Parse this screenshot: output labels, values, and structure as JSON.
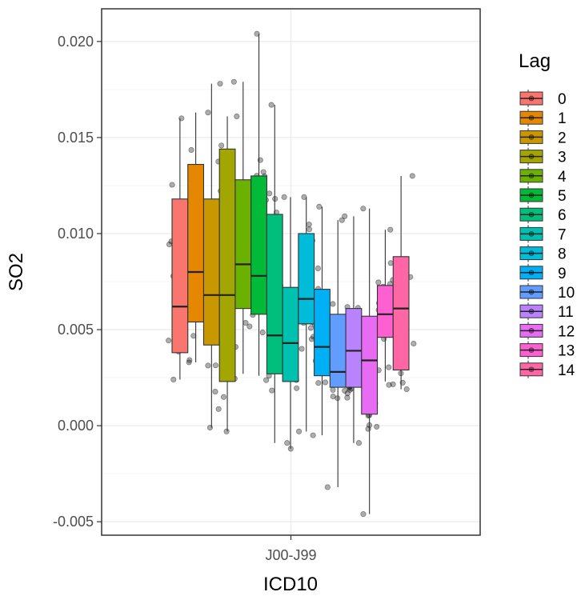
{
  "chart_data": {
    "type": "boxplot",
    "xlabel": "ICD10",
    "ylabel": "SO2",
    "categories": [
      "J00-J99"
    ],
    "ylim": [
      -0.0057,
      0.0217
    ],
    "yticks": [
      -0.005,
      0.0,
      0.005,
      0.01,
      0.015,
      0.02
    ],
    "ytick_labels": [
      "-0.005",
      "0.000",
      "0.005",
      "0.010",
      "0.015",
      "0.020"
    ],
    "grid": true,
    "legend": {
      "title": "Lag",
      "position": "right"
    },
    "series": [
      {
        "name": "0",
        "color": "#F8766D",
        "q1": 0.0038,
        "median": 0.0062,
        "q3": 0.0118,
        "whisker_low": 0.0024,
        "whisker_high": 0.016
      },
      {
        "name": "1",
        "color": "#E58700",
        "q1": 0.0054,
        "median": 0.008,
        "q3": 0.0136,
        "whisker_low": 0.0033,
        "whisker_high": 0.0163
      },
      {
        "name": "2",
        "color": "#C99800",
        "q1": 0.0042,
        "median": 0.0068,
        "q3": 0.0118,
        "whisker_low": -0.0001,
        "whisker_high": 0.0178
      },
      {
        "name": "3",
        "color": "#A3A500",
        "q1": 0.0023,
        "median": 0.0068,
        "q3": 0.0144,
        "whisker_low": -0.0003,
        "whisker_high": 0.0161
      },
      {
        "name": "4",
        "color": "#6BB100",
        "q1": 0.0061,
        "median": 0.0084,
        "q3": 0.0128,
        "whisker_low": 0.0027,
        "whisker_high": 0.0179
      },
      {
        "name": "5",
        "color": "#00BA38",
        "q1": 0.0058,
        "median": 0.0078,
        "q3": 0.013,
        "whisker_low": 0.0026,
        "whisker_high": 0.0204
      },
      {
        "name": "6",
        "color": "#00BF7D",
        "q1": 0.0027,
        "median": 0.0047,
        "q3": 0.011,
        "whisker_low": -0.0009,
        "whisker_high": 0.0167
      },
      {
        "name": "7",
        "color": "#00C0AF",
        "q1": 0.0023,
        "median": 0.0043,
        "q3": 0.0072,
        "whisker_low": -0.0012,
        "whisker_high": 0.0119
      },
      {
        "name": "8",
        "color": "#00BCD8",
        "q1": 0.0053,
        "median": 0.0066,
        "q3": 0.01,
        "whisker_low": -0.0003,
        "whisker_high": 0.0119
      },
      {
        "name": "9",
        "color": "#00B0F6",
        "q1": 0.0026,
        "median": 0.0041,
        "q3": 0.0071,
        "whisker_low": -0.0005,
        "whisker_high": 0.0114
      },
      {
        "name": "10",
        "color": "#619CFF",
        "q1": 0.002,
        "median": 0.0028,
        "q3": 0.0058,
        "whisker_low": -0.0032,
        "whisker_high": 0.0107
      },
      {
        "name": "11",
        "color": "#B983FF",
        "q1": 0.002,
        "median": 0.0039,
        "q3": 0.0061,
        "whisker_low": -0.0009,
        "whisker_high": 0.0109
      },
      {
        "name": "12",
        "color": "#E76BF3",
        "q1": 0.0006,
        "median": 0.0034,
        "q3": 0.0057,
        "whisker_low": -0.0046,
        "whisker_high": 0.0113
      },
      {
        "name": "13",
        "color": "#FD61D1",
        "q1": 0.0046,
        "median": 0.0058,
        "q3": 0.0073,
        "whisker_low": 0.0023,
        "whisker_high": 0.0102
      },
      {
        "name": "14",
        "color": "#FF67A4",
        "q1": 0.0029,
        "median": 0.0061,
        "q3": 0.0088,
        "whisker_low": 0.0019,
        "whisker_high": 0.013
      }
    ]
  }
}
